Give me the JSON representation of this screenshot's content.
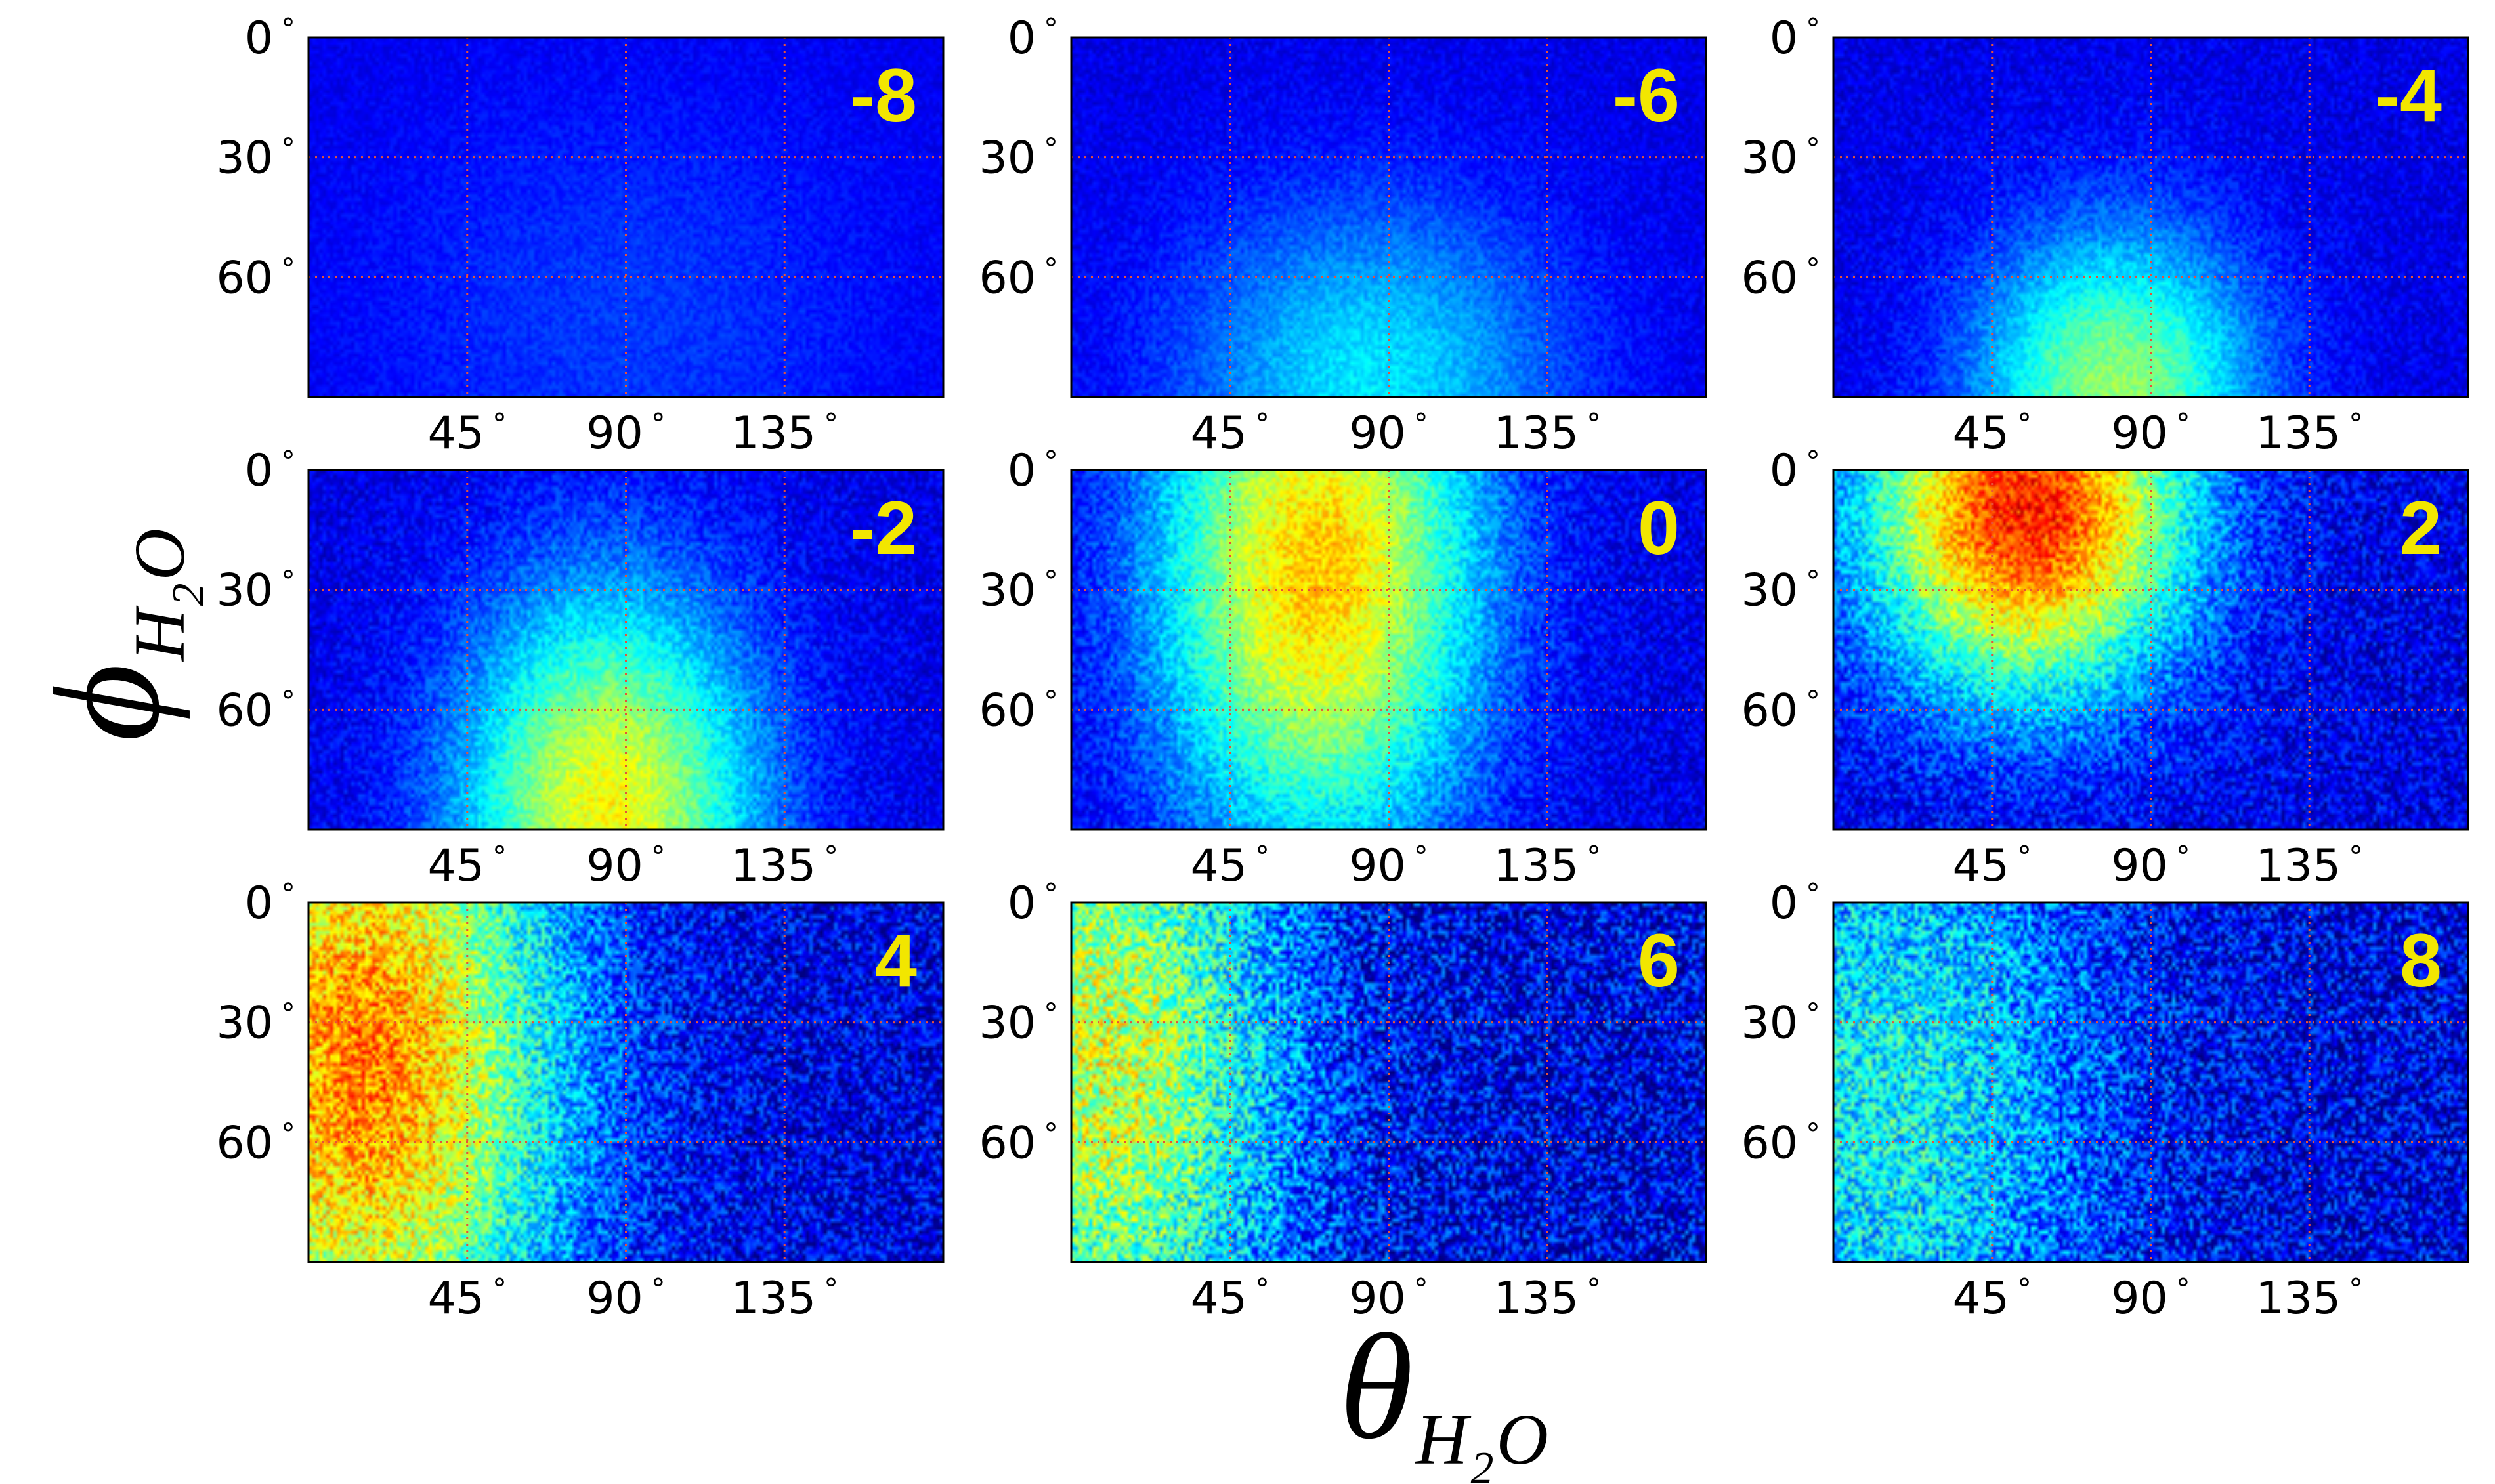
{
  "chart_data": {
    "type": "heatmap",
    "colormap": "jet",
    "grid": true,
    "grid_style": "dotted-red",
    "xlabel": {
      "base": "θ",
      "sub": "H",
      "sub2": "2",
      "sub3": "O"
    },
    "ylabel": {
      "base": "ϕ",
      "sub": "H",
      "sub2": "2",
      "sub3": "O"
    },
    "xlim": [
      0,
      180
    ],
    "ylim": [
      90,
      0
    ],
    "x_ticks": [
      45,
      90,
      135
    ],
    "x_tick_labels": [
      "45",
      "90",
      "135"
    ],
    "y_ticks": [
      0,
      30,
      60
    ],
    "y_tick_labels": [
      "0",
      "30",
      "60"
    ],
    "degree_symbol": "°",
    "panel_label_color": "#f2e600",
    "panels": [
      {
        "label": "-8",
        "peak": 0.18,
        "center_x": 90,
        "center_y": 70,
        "spread_x": 80,
        "spread_y": 60,
        "noise": 0.03
      },
      {
        "label": "-6",
        "peak": 0.35,
        "center_x": 85,
        "center_y": 85,
        "spread_x": 55,
        "spread_y": 45,
        "noise": 0.04
      },
      {
        "label": "-4",
        "peak": 0.52,
        "center_x": 80,
        "center_y": 88,
        "spread_x": 40,
        "spread_y": 40,
        "noise": 0.05
      },
      {
        "label": "-2",
        "peak": 0.62,
        "center_x": 85,
        "center_y": 85,
        "spread_x": 42,
        "spread_y": 55,
        "noise": 0.06
      },
      {
        "label": "0",
        "peak": 0.68,
        "center_x": 70,
        "center_y": 25,
        "spread_x": 45,
        "spread_y": 70,
        "noise": 0.07
      },
      {
        "label": "2",
        "peak": 0.85,
        "center_x": 55,
        "center_y": 10,
        "spread_x": 45,
        "spread_y": 45,
        "noise": 0.1
      },
      {
        "label": "4",
        "peak": 0.75,
        "center_x": 15,
        "center_y": 40,
        "spread_x": 55,
        "spread_y": 90,
        "noise": 0.13
      },
      {
        "label": "6",
        "peak": 0.58,
        "center_x": 10,
        "center_y": 40,
        "spread_x": 50,
        "spread_y": 90,
        "noise": 0.16
      },
      {
        "label": "8",
        "peak": 0.38,
        "center_x": 15,
        "center_y": 50,
        "spread_x": 60,
        "spread_y": 90,
        "noise": 0.15
      }
    ]
  }
}
